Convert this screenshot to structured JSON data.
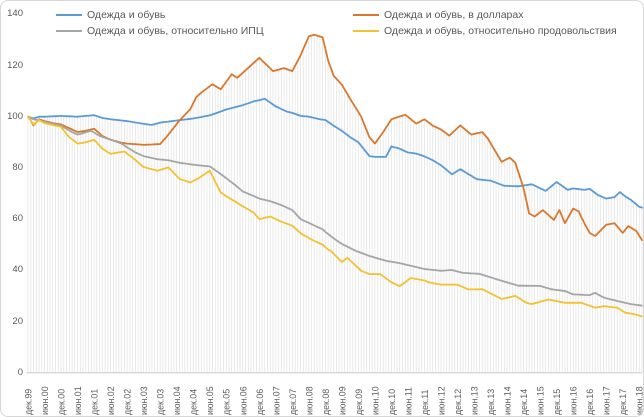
{
  "chart_data": {
    "type": "line",
    "title": "",
    "xlabel": "",
    "ylabel": "",
    "ylim": [
      0,
      140
    ],
    "y_ticks": [
      0,
      20,
      40,
      60,
      80,
      100,
      120,
      140
    ],
    "grid": "vertical-droplines-monthly",
    "legend_position": "top-two-columns",
    "x_encoding": "months since дек.99 (monthly data, дек.99 = 100)",
    "x_tick_labels": [
      "дек.99",
      "июн.00",
      "дек.00",
      "июн.01",
      "дек.01",
      "июн.02",
      "дек.02",
      "июн.03",
      "дек.03",
      "июн.04",
      "дек.04",
      "июн.05",
      "дек.05",
      "июн.06",
      "дек.06",
      "июн.07",
      "дек.07",
      "июн.08",
      "дек.08",
      "июн.09",
      "дек.09",
      "июн.10",
      "дек.10",
      "июн.11",
      "дек.11",
      "июн.12",
      "дек.12",
      "июн.13",
      "дек.13",
      "июн.14",
      "дек.14",
      "июн.15",
      "дек.15",
      "июн.16",
      "дек.16",
      "июн.17",
      "дек.17",
      "июн.18"
    ],
    "x_ticks_every_months": 6,
    "dropline_color": "#e4e4e4",
    "axis_line_color": "#c9c9c9",
    "tick_label_color": "#595959",
    "series": [
      {
        "name": "Одежда и обувь",
        "color": "#5B9BD5",
        "points": [
          [
            0,
            100
          ],
          [
            2,
            99.3
          ],
          [
            4,
            100
          ],
          [
            6,
            100
          ],
          [
            12,
            100.3
          ],
          [
            18,
            100
          ],
          [
            24,
            100.6
          ],
          [
            27,
            99.5
          ],
          [
            30,
            99
          ],
          [
            36,
            98.3
          ],
          [
            42,
            97.2
          ],
          [
            45,
            96.8
          ],
          [
            48,
            97.7
          ],
          [
            54,
            98.5
          ],
          [
            60,
            99.3
          ],
          [
            66,
            100.5
          ],
          [
            72,
            102.8
          ],
          [
            78,
            104.5
          ],
          [
            82,
            106
          ],
          [
            84,
            106.4
          ],
          [
            86,
            107
          ],
          [
            88,
            105.5
          ],
          [
            90,
            104
          ],
          [
            94,
            102
          ],
          [
            96,
            101.5
          ],
          [
            99,
            100.3
          ],
          [
            102,
            100
          ],
          [
            106,
            99
          ],
          [
            108,
            98.7
          ],
          [
            111,
            96.5
          ],
          [
            114,
            94.5
          ],
          [
            117,
            92
          ],
          [
            120,
            90
          ],
          [
            124,
            84.6
          ],
          [
            126,
            84.3
          ],
          [
            130,
            84.3
          ],
          [
            132,
            88.4
          ],
          [
            135,
            87.5
          ],
          [
            138,
            86
          ],
          [
            141,
            85.6
          ],
          [
            144,
            84.5
          ],
          [
            147,
            83
          ],
          [
            150,
            81
          ],
          [
            154,
            77.5
          ],
          [
            157,
            79.5
          ],
          [
            163,
            75.6
          ],
          [
            168,
            75
          ],
          [
            173,
            73
          ],
          [
            178,
            72.8
          ],
          [
            183,
            73.6
          ],
          [
            188,
            71
          ],
          [
            192,
            74.5
          ],
          [
            196,
            71.4
          ],
          [
            198,
            72
          ],
          [
            202,
            71.4
          ],
          [
            204,
            71.8
          ],
          [
            207,
            69.4
          ],
          [
            210,
            68
          ],
          [
            213,
            68.6
          ],
          [
            215,
            70.6
          ],
          [
            217,
            68.8
          ],
          [
            219,
            67.5
          ],
          [
            222,
            64.8
          ],
          [
            223,
            64.5
          ]
        ]
      },
      {
        "name": "Одежда и обувь, в долларах",
        "color": "#D9782D",
        "points": [
          [
            0,
            100
          ],
          [
            1,
            98.5
          ],
          [
            2,
            96.6
          ],
          [
            4,
            99
          ],
          [
            6,
            98.3
          ],
          [
            9,
            97.5
          ],
          [
            12,
            97
          ],
          [
            15,
            95.5
          ],
          [
            18,
            94
          ],
          [
            21,
            94.5
          ],
          [
            24,
            95.3
          ],
          [
            27,
            92.5
          ],
          [
            30,
            91
          ],
          [
            34,
            89.8
          ],
          [
            36,
            89.5
          ],
          [
            42,
            89
          ],
          [
            48,
            89.3
          ],
          [
            51,
            93
          ],
          [
            55,
            98.5
          ],
          [
            59,
            103
          ],
          [
            61,
            107.5
          ],
          [
            63,
            109.5
          ],
          [
            67,
            112.7
          ],
          [
            70,
            110.7
          ],
          [
            74,
            116.6
          ],
          [
            76,
            115.2
          ],
          [
            80,
            119.1
          ],
          [
            84,
            123
          ],
          [
            89,
            117.8
          ],
          [
            93,
            119
          ],
          [
            96,
            117.8
          ],
          [
            99,
            124
          ],
          [
            102,
            131.4
          ],
          [
            104,
            132
          ],
          [
            107,
            131
          ],
          [
            109,
            122
          ],
          [
            111,
            116
          ],
          [
            114,
            112.5
          ],
          [
            117,
            107
          ],
          [
            121,
            100
          ],
          [
            124,
            92
          ],
          [
            126,
            89.5
          ],
          [
            129,
            94
          ],
          [
            132,
            99
          ],
          [
            137,
            100.8
          ],
          [
            141,
            97.3
          ],
          [
            144,
            99
          ],
          [
            147,
            96.5
          ],
          [
            150,
            95
          ],
          [
            153,
            92.6
          ],
          [
            157,
            96.6
          ],
          [
            161,
            93
          ],
          [
            165,
            94
          ],
          [
            167,
            91.5
          ],
          [
            170,
            86
          ],
          [
            172,
            82.4
          ],
          [
            175,
            84
          ],
          [
            177,
            82
          ],
          [
            180,
            72
          ],
          [
            182,
            62.2
          ],
          [
            184,
            61
          ],
          [
            187,
            63.5
          ],
          [
            191,
            59.7
          ],
          [
            193,
            63.5
          ],
          [
            195,
            58.4
          ],
          [
            198,
            64.1
          ],
          [
            200,
            63
          ],
          [
            202,
            58.5
          ],
          [
            204,
            54.6
          ],
          [
            206,
            53.4
          ],
          [
            210,
            57.8
          ],
          [
            213,
            58.4
          ],
          [
            216,
            54.6
          ],
          [
            218,
            57.3
          ],
          [
            221,
            55.3
          ],
          [
            223,
            51.8
          ]
        ]
      },
      {
        "name": "Одежда и обувь, относительно ИПЦ",
        "color": "#A5A5A5",
        "points": [
          [
            0,
            100
          ],
          [
            2,
            99
          ],
          [
            6,
            98
          ],
          [
            12,
            96.5
          ],
          [
            16,
            94
          ],
          [
            18,
            93
          ],
          [
            23,
            94.5
          ],
          [
            26,
            92.5
          ],
          [
            30,
            91
          ],
          [
            34,
            89.5
          ],
          [
            36,
            88
          ],
          [
            39,
            86
          ],
          [
            42,
            84.6
          ],
          [
            47,
            83.4
          ],
          [
            51,
            83
          ],
          [
            55,
            82
          ],
          [
            59,
            81.4
          ],
          [
            62,
            81
          ],
          [
            66,
            80.6
          ],
          [
            70,
            77.6
          ],
          [
            72,
            76
          ],
          [
            75,
            73.5
          ],
          [
            78,
            70.8
          ],
          [
            82,
            69
          ],
          [
            84,
            68
          ],
          [
            88,
            67
          ],
          [
            92,
            65.5
          ],
          [
            96,
            63.5
          ],
          [
            99,
            60
          ],
          [
            103,
            58
          ],
          [
            107,
            56
          ],
          [
            108,
            55
          ],
          [
            111,
            52.5
          ],
          [
            114,
            50.3
          ],
          [
            119,
            47.6
          ],
          [
            124,
            45.6
          ],
          [
            130,
            43.7
          ],
          [
            134,
            43
          ],
          [
            139,
            41.8
          ],
          [
            144,
            40.5
          ],
          [
            150,
            39.8
          ],
          [
            154,
            40.1
          ],
          [
            158,
            39
          ],
          [
            164,
            38.6
          ],
          [
            172,
            35.9
          ],
          [
            178,
            34
          ],
          [
            186,
            33.9
          ],
          [
            190,
            32.6
          ],
          [
            195,
            31.9
          ],
          [
            198,
            30.6
          ],
          [
            204,
            30.3
          ],
          [
            206,
            31.2
          ],
          [
            209,
            29.4
          ],
          [
            214,
            28
          ],
          [
            219,
            26.8
          ],
          [
            223,
            26.2
          ]
        ]
      },
      {
        "name": "Одежда и обувь, относительно продовольствия",
        "color": "#F2C230",
        "points": [
          [
            0,
            100
          ],
          [
            1,
            98.5
          ],
          [
            2,
            97
          ],
          [
            4,
            98.7
          ],
          [
            6,
            97.5
          ],
          [
            12,
            96
          ],
          [
            15,
            92
          ],
          [
            18,
            89.5
          ],
          [
            21,
            90
          ],
          [
            24,
            91
          ],
          [
            27,
            87.5
          ],
          [
            30,
            85.5
          ],
          [
            35,
            86.4
          ],
          [
            38,
            84
          ],
          [
            42,
            80.3
          ],
          [
            47,
            78.9
          ],
          [
            51,
            80.2
          ],
          [
            55,
            75.7
          ],
          [
            59,
            74.3
          ],
          [
            62,
            76
          ],
          [
            66,
            78.9
          ],
          [
            70,
            70.4
          ],
          [
            72,
            69
          ],
          [
            75,
            67
          ],
          [
            78,
            65
          ],
          [
            82,
            62.5
          ],
          [
            84,
            60
          ],
          [
            88,
            61
          ],
          [
            92,
            59
          ],
          [
            96,
            57.4
          ],
          [
            99,
            54.5
          ],
          [
            103,
            52
          ],
          [
            107,
            50
          ],
          [
            109,
            48.1
          ],
          [
            110,
            47.6
          ],
          [
            114,
            43.2
          ],
          [
            116,
            44.9
          ],
          [
            121,
            39.8
          ],
          [
            124,
            38.5
          ],
          [
            128,
            38.5
          ],
          [
            132,
            35.3
          ],
          [
            135,
            33.8
          ],
          [
            139,
            37
          ],
          [
            144,
            36
          ],
          [
            146,
            35.2
          ],
          [
            150,
            34.4
          ],
          [
            156,
            34.4
          ],
          [
            160,
            32.5
          ],
          [
            165,
            32.6
          ],
          [
            172,
            28.8
          ],
          [
            177,
            30
          ],
          [
            181,
            27.3
          ],
          [
            183,
            26.8
          ],
          [
            189,
            28.6
          ],
          [
            195,
            27.3
          ],
          [
            201,
            27.3
          ],
          [
            206,
            25.4
          ],
          [
            209,
            26
          ],
          [
            214,
            25.4
          ],
          [
            217,
            23.4
          ],
          [
            220,
            22.9
          ],
          [
            223,
            22
          ]
        ]
      }
    ]
  }
}
